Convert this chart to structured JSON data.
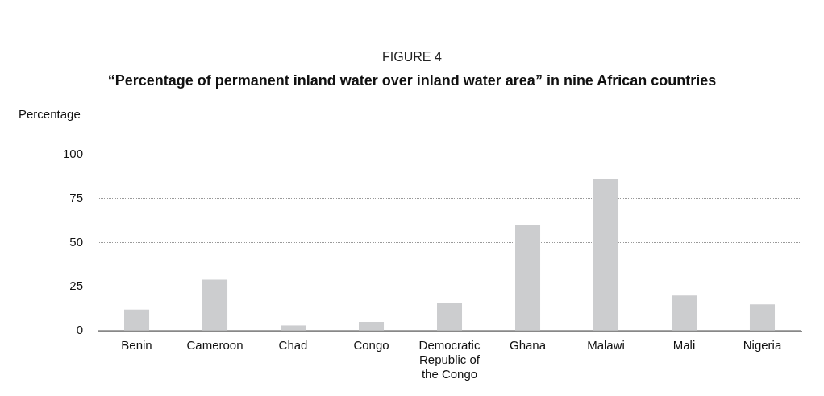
{
  "chart_data": {
    "type": "bar",
    "title": "FIGURE 4",
    "subtitle": "“Percentage of permanent inland water over inland water area” in nine African countries",
    "ylabel": "Percentage",
    "categories": [
      "Benin",
      "Cameroon",
      "Chad",
      "Congo",
      "Democratic Republic of the Congo",
      "Ghana",
      "Malawi",
      "Mali",
      "Nigeria"
    ],
    "values": [
      12,
      29,
      3,
      5,
      16,
      60,
      86,
      20,
      15
    ],
    "color": "#cccdcf",
    "ylim": [
      0,
      100
    ],
    "yticks": [
      0,
      25,
      50,
      75,
      100
    ],
    "grid": "y",
    "legend": false
  }
}
